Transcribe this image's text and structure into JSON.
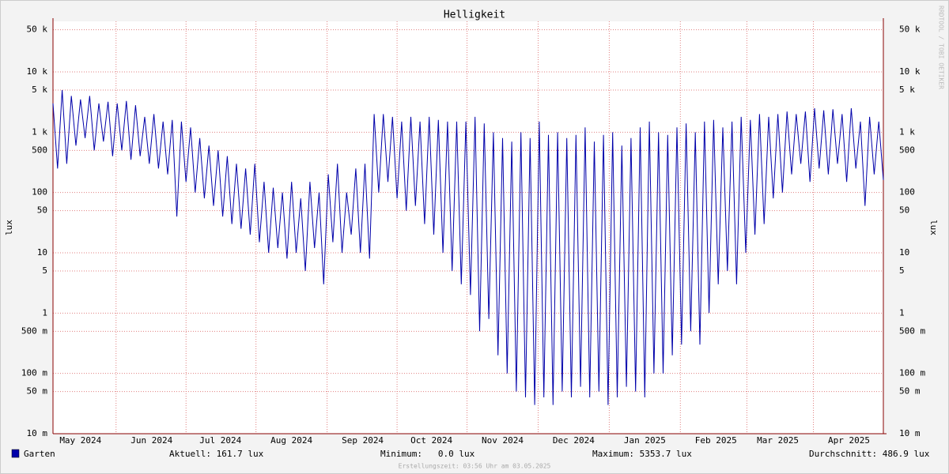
{
  "chart_data": {
    "type": "line",
    "title": "Helligkeit",
    "y_label": "lux",
    "watermark": "RRDTOOL / TOBI OETIKER",
    "footer": "Erstellungszeit: 03:56 Uhr am 03.05.2025",
    "log_scale": true,
    "grid": true,
    "ylim": [
      0.01,
      69000
    ],
    "yticks": [
      {
        "value": 0.01,
        "label": "10 m"
      },
      {
        "value": 0.05,
        "label": "50 m"
      },
      {
        "value": 0.1,
        "label": "100 m"
      },
      {
        "value": 0.5,
        "label": "500 m"
      },
      1,
      5,
      10,
      50,
      100,
      500,
      {
        "value": 1000,
        "label": "1 k"
      },
      {
        "value": 5000,
        "label": "5 k"
      },
      {
        "value": 10000,
        "label": "10 k"
      },
      {
        "value": 50000,
        "label": "50 k"
      }
    ],
    "xlim": [
      0,
      362
    ],
    "xticks": [
      {
        "value": 12,
        "label": "May 2024"
      },
      {
        "value": 43,
        "label": "Jun 2024"
      },
      {
        "value": 73,
        "label": "Jul 2024"
      },
      {
        "value": 104,
        "label": "Aug 2024"
      },
      {
        "value": 135,
        "label": "Sep 2024"
      },
      {
        "value": 165,
        "label": "Oct 2024"
      },
      {
        "value": 196,
        "label": "Nov 2024"
      },
      {
        "value": 227,
        "label": "Dec 2024"
      },
      {
        "value": 258,
        "label": "Jan 2025"
      },
      {
        "value": 289,
        "label": "Feb 2025"
      },
      {
        "value": 316,
        "label": "Mar 2025"
      },
      {
        "value": 347,
        "label": "Apr 2025"
      }
    ],
    "x": [
      0,
      2,
      4,
      6,
      8,
      10,
      12,
      14,
      16,
      18,
      20,
      22,
      24,
      26,
      28,
      30,
      32,
      34,
      36,
      38,
      40,
      42,
      44,
      46,
      48,
      50,
      52,
      54,
      56,
      58,
      60,
      62,
      64,
      66,
      68,
      70,
      72,
      74,
      76,
      78,
      80,
      82,
      84,
      86,
      88,
      90,
      92,
      94,
      96,
      98,
      100,
      102,
      104,
      106,
      108,
      110,
      112,
      114,
      116,
      118,
      120,
      122,
      124,
      126,
      128,
      130,
      132,
      134,
      136,
      138,
      140,
      142,
      144,
      146,
      148,
      150,
      152,
      154,
      156,
      158,
      160,
      162,
      164,
      166,
      168,
      170,
      172,
      174,
      176,
      178,
      180,
      182,
      184,
      186,
      188,
      190,
      192,
      194,
      196,
      198,
      200,
      202,
      204,
      206,
      208,
      210,
      212,
      214,
      216,
      218,
      220,
      222,
      224,
      226,
      228,
      230,
      232,
      234,
      236,
      238,
      240,
      242,
      244,
      246,
      248,
      250,
      252,
      254,
      256,
      258,
      260,
      262,
      264,
      266,
      268,
      270,
      272,
      274,
      276,
      278,
      280,
      282,
      284,
      286,
      288,
      290,
      292,
      294,
      296,
      298,
      300,
      302,
      304,
      306,
      308,
      310,
      312,
      314,
      316,
      318,
      320,
      322,
      324,
      326,
      328,
      330,
      332,
      334,
      336,
      338,
      340,
      342,
      344,
      346,
      348,
      350,
      352,
      354,
      356,
      358,
      360,
      362
    ],
    "series": [
      {
        "name": "Garten",
        "color": "#0000aa",
        "values": [
          3000,
          250,
          5000,
          300,
          4000,
          600,
          3500,
          800,
          4000,
          500,
          3000,
          700,
          3200,
          400,
          3000,
          500,
          3300,
          350,
          2800,
          400,
          1800,
          300,
          2000,
          250,
          1500,
          200,
          1600,
          40,
          1500,
          150,
          1200,
          100,
          800,
          80,
          600,
          60,
          500,
          40,
          400,
          30,
          300,
          25,
          250,
          20,
          300,
          15,
          150,
          10,
          120,
          12,
          100,
          8,
          150,
          10,
          80,
          5,
          150,
          12,
          100,
          3,
          200,
          15,
          300,
          10,
          100,
          20,
          250,
          10,
          300,
          8,
          2000,
          100,
          2000,
          150,
          1800,
          80,
          1500,
          50,
          1800,
          60,
          1500,
          30,
          1800,
          20,
          1600,
          10,
          1500,
          5,
          1500,
          3,
          1500,
          2,
          1800,
          0.5,
          1400,
          0.8,
          1000,
          0.2,
          800,
          0.1,
          700,
          0.05,
          1000,
          0.04,
          800,
          0.03,
          1500,
          0.04,
          900,
          0.03,
          1000,
          0.05,
          800,
          0.04,
          900,
          0.06,
          1200,
          0.04,
          700,
          0.05,
          900,
          0.03,
          1000,
          0.04,
          600,
          0.06,
          800,
          0.05,
          1200,
          0.04,
          1500,
          0.1,
          1000,
          0.1,
          900,
          0.2,
          1200,
          0.3,
          1400,
          0.5,
          1000,
          0.3,
          1500,
          1,
          1600,
          3,
          1200,
          5,
          1500,
          3,
          1800,
          10,
          1600,
          20,
          2000,
          30,
          1800,
          80,
          2000,
          100,
          2200,
          200,
          2000,
          300,
          2200,
          150,
          2500,
          250,
          2300,
          200,
          2400,
          300,
          2000,
          150,
          2500,
          250,
          1500,
          60,
          1800,
          200,
          1500,
          161.7
        ]
      }
    ],
    "legend_stats": [
      "Aktuell: 161.7 lux",
      "Minimum:   0.0 lux",
      "Maximum: 5353.7 lux",
      "Durchschnitt: 486.9 lux"
    ]
  }
}
